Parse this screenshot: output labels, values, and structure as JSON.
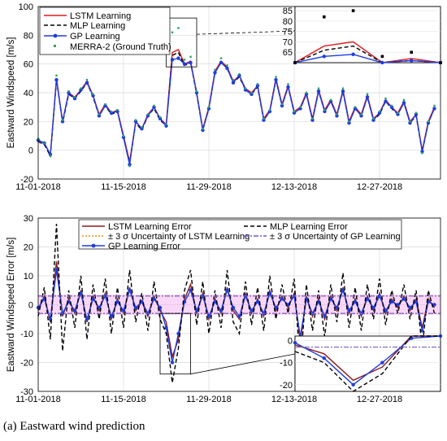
{
  "caption": {
    "tag": "(a)",
    "text": "Eastward wind prediction"
  },
  "colors": {
    "lstm": "#e31a1c",
    "mlp": "#000000",
    "gp": "#1f3de0",
    "merra": "#2ca25f",
    "lstm_err": "#8b1a1a",
    "sigma_lstm": "#ff8c00",
    "sigma_gp": "#6a5acd",
    "band": "#f3b6f3"
  },
  "chart_data": [
    {
      "type": "line",
      "ylabel": "Eastward Windspeed [m/s]",
      "ylim": [
        -20,
        100
      ],
      "yticks": [
        -20,
        0,
        20,
        40,
        60,
        80,
        100
      ],
      "xlim": [
        0,
        66
      ],
      "xticks": [
        {
          "pos": 0,
          "label": "11-01-2018"
        },
        {
          "pos": 14,
          "label": "11-15-2018"
        },
        {
          "pos": 28,
          "label": "11-29-2018"
        },
        {
          "pos": 42,
          "label": "12-13-2018"
        },
        {
          "pos": 56,
          "label": "12-27-2018"
        }
      ],
      "grid": true,
      "legend_position": "top-left",
      "series": [
        {
          "name": "LSTM Learning",
          "style": "line",
          "color": "lstm",
          "x": [
            0,
            1,
            2,
            3,
            4,
            5,
            6,
            7,
            8,
            9,
            10,
            11,
            12,
            13,
            14,
            15,
            16,
            17,
            18,
            19,
            20,
            21,
            22,
            23,
            24,
            25,
            26,
            27,
            28,
            29,
            30,
            31,
            32,
            33,
            34,
            35,
            36,
            37,
            38,
            39,
            40,
            41,
            42,
            43,
            44,
            45,
            46,
            47,
            48,
            49,
            50,
            51,
            52,
            53,
            54,
            55,
            56,
            57,
            58,
            59,
            60,
            61,
            62,
            63,
            64,
            65
          ],
          "y": [
            7,
            5,
            -3,
            50,
            20,
            40,
            37,
            42,
            48,
            38,
            25,
            32,
            26,
            28,
            10,
            -8,
            20,
            15,
            25,
            30,
            22,
            18,
            68,
            70,
            60,
            62,
            40,
            15,
            30,
            55,
            62,
            58,
            48,
            52,
            43,
            40,
            45,
            22,
            28,
            50,
            32,
            45,
            27,
            30,
            40,
            22,
            42,
            28,
            35,
            25,
            42,
            20,
            30,
            25,
            38,
            22,
            26,
            35,
            30,
            26,
            34,
            20,
            25,
            0,
            20,
            30
          ]
        },
        {
          "name": "MLP Learning",
          "style": "dash",
          "color": "mlp",
          "x": [
            0,
            1,
            2,
            3,
            4,
            5,
            6,
            7,
            8,
            9,
            10,
            11,
            12,
            13,
            14,
            15,
            16,
            17,
            18,
            19,
            20,
            21,
            22,
            23,
            24,
            25,
            26,
            27,
            28,
            29,
            30,
            31,
            32,
            33,
            34,
            35,
            36,
            37,
            38,
            39,
            40,
            41,
            42,
            43,
            44,
            45,
            46,
            47,
            48,
            49,
            50,
            51,
            52,
            53,
            54,
            55,
            56,
            57,
            58,
            59,
            60,
            61,
            62,
            63,
            64,
            65
          ],
          "y": [
            6,
            4,
            -4,
            49,
            19,
            39,
            36,
            41,
            47,
            37,
            24,
            31,
            25,
            27,
            9,
            -9,
            19,
            14,
            24,
            29,
            21,
            17,
            66,
            68,
            59,
            61,
            39,
            14,
            29,
            54,
            61,
            57,
            47,
            51,
            42,
            39,
            44,
            21,
            27,
            49,
            31,
            44,
            26,
            29,
            39,
            21,
            41,
            27,
            34,
            24,
            41,
            19,
            29,
            24,
            37,
            21,
            25,
            34,
            29,
            25,
            33,
            19,
            24,
            -1,
            19,
            29
          ]
        },
        {
          "name": "GP Learning",
          "style": "line-marker",
          "color": "gp",
          "x": [
            0,
            1,
            2,
            3,
            4,
            5,
            6,
            7,
            8,
            9,
            10,
            11,
            12,
            13,
            14,
            15,
            16,
            17,
            18,
            19,
            20,
            21,
            22,
            23,
            24,
            25,
            26,
            27,
            28,
            29,
            30,
            31,
            32,
            33,
            34,
            35,
            36,
            37,
            38,
            39,
            40,
            41,
            42,
            43,
            44,
            45,
            46,
            47,
            48,
            49,
            50,
            51,
            52,
            53,
            54,
            55,
            56,
            57,
            58,
            59,
            60,
            61,
            62,
            63,
            64,
            65
          ],
          "y": [
            7,
            5,
            -3,
            49,
            20,
            40,
            36,
            42,
            47,
            38,
            24,
            31,
            26,
            27,
            9,
            -10,
            20,
            15,
            24,
            30,
            22,
            17,
            63,
            64,
            60,
            61,
            40,
            14,
            29,
            54,
            61,
            57,
            47,
            52,
            42,
            39,
            45,
            21,
            27,
            49,
            31,
            44,
            26,
            29,
            39,
            21,
            41,
            27,
            34,
            24,
            41,
            19,
            29,
            24,
            37,
            21,
            26,
            34,
            30,
            25,
            33,
            19,
            25,
            -1,
            19,
            29
          ]
        },
        {
          "name": "MERRA-2 (Ground Truth)",
          "style": "marker",
          "color": "merra",
          "x": [
            0,
            1,
            2,
            3,
            4,
            5,
            6,
            7,
            8,
            9,
            10,
            11,
            12,
            13,
            14,
            15,
            16,
            17,
            18,
            19,
            20,
            21,
            22,
            23,
            24,
            25,
            26,
            27,
            28,
            29,
            30,
            31,
            32,
            33,
            34,
            35,
            36,
            37,
            38,
            39,
            40,
            41,
            42,
            43,
            44,
            45,
            46,
            47,
            48,
            49,
            50,
            51,
            52,
            53,
            54,
            55,
            56,
            57,
            58,
            59,
            60,
            61,
            62,
            63,
            64,
            65
          ],
          "y": [
            8,
            5,
            -4,
            52,
            21,
            41,
            37,
            43,
            49,
            39,
            25,
            32,
            27,
            28,
            10,
            -11,
            21,
            16,
            25,
            31,
            23,
            18,
            82,
            85,
            63,
            65,
            41,
            15,
            30,
            56,
            64,
            59,
            49,
            53,
            43,
            40,
            46,
            22,
            28,
            51,
            32,
            46,
            27,
            30,
            40,
            22,
            43,
            28,
            35,
            25,
            43,
            20,
            30,
            25,
            39,
            22,
            27,
            36,
            31,
            26,
            35,
            20,
            26,
            -2,
            20,
            31
          ]
        }
      ],
      "inset": {
        "ylim": [
          60,
          87
        ],
        "yticks": [
          65,
          70,
          75,
          80,
          85
        ],
        "x_range": [
          21,
          26
        ],
        "box_y": [
          58,
          92
        ]
      }
    },
    {
      "type": "line",
      "ylabel": "Eastward Windspeed Error [m/s]",
      "ylim": [
        -30,
        30
      ],
      "yticks": [
        -30,
        -20,
        -10,
        0,
        10,
        20,
        30
      ],
      "xlim": [
        0,
        66
      ],
      "xticks": [
        {
          "pos": 0,
          "label": "11-01-2018"
        },
        {
          "pos": 14,
          "label": "11-15-2018"
        },
        {
          "pos": 28,
          "label": "11-29-2018"
        },
        {
          "pos": 42,
          "label": "12-13-2018"
        },
        {
          "pos": 56,
          "label": "12-27-2018"
        }
      ],
      "grid": true,
      "legend_position": "top",
      "band": [
        -3.5,
        3.5
      ],
      "series": [
        {
          "name": "LSTM Learning Error",
          "style": "line",
          "color": "lstm_err",
          "x": [
            0,
            1,
            2,
            3,
            4,
            5,
            6,
            7,
            8,
            9,
            10,
            11,
            12,
            13,
            14,
            15,
            16,
            17,
            18,
            19,
            20,
            21,
            22,
            23,
            24,
            25,
            26,
            27,
            28,
            29,
            30,
            31,
            32,
            33,
            34,
            35,
            36,
            37,
            38,
            39,
            40,
            41,
            42,
            43,
            44,
            45,
            46,
            47,
            48,
            49,
            50,
            51,
            52,
            53,
            54,
            55,
            56,
            57,
            58,
            59,
            60,
            61,
            62,
            63,
            64,
            65
          ],
          "y": [
            -2,
            3,
            -6,
            15,
            -4,
            2,
            -3,
            5,
            -6,
            3,
            -2,
            4,
            -5,
            2,
            -3,
            6,
            -2,
            1,
            -4,
            3,
            -2,
            -6,
            -18,
            -12,
            2,
            7,
            -3,
            4,
            -5,
            2,
            -3,
            6,
            -2,
            -5,
            4,
            -3,
            2,
            -4,
            5,
            -2,
            3,
            -1,
            4,
            -13,
            3,
            -4,
            2,
            -5,
            3,
            -2,
            6,
            -3,
            2,
            -4,
            3,
            -2,
            4,
            -3,
            2,
            -1,
            3,
            -2,
            2,
            -8,
            2,
            -1
          ]
        },
        {
          "name": "GP Learning Error",
          "style": "line-marker",
          "color": "gp",
          "x": [
            0,
            1,
            2,
            3,
            4,
            5,
            6,
            7,
            8,
            9,
            10,
            11,
            12,
            13,
            14,
            15,
            16,
            17,
            18,
            19,
            20,
            21,
            22,
            23,
            24,
            25,
            26,
            27,
            28,
            29,
            30,
            31,
            32,
            33,
            34,
            35,
            36,
            37,
            38,
            39,
            40,
            41,
            42,
            43,
            44,
            45,
            46,
            47,
            48,
            49,
            50,
            51,
            52,
            53,
            54,
            55,
            56,
            57,
            58,
            59,
            60,
            61,
            62,
            63,
            64,
            65
          ],
          "y": [
            -1,
            2,
            -5,
            12,
            -3,
            1,
            -2,
            4,
            -5,
            2,
            -1,
            3,
            -4,
            1,
            -2,
            5,
            -1,
            1,
            -3,
            2,
            -1,
            -8,
            -20,
            -10,
            1,
            5,
            -2,
            3,
            -4,
            1,
            -2,
            5,
            -1,
            -4,
            3,
            -2,
            1,
            -3,
            4,
            -1,
            2,
            0,
            3,
            -11,
            2,
            -3,
            1,
            -4,
            2,
            -1,
            5,
            -2,
            1,
            -3,
            2,
            -1,
            3,
            -2,
            1,
            0,
            2,
            -1,
            1,
            -9,
            1,
            0
          ]
        },
        {
          "name": "MLP Learning Error",
          "style": "dash",
          "color": "mlp",
          "x": [
            0,
            1,
            2,
            3,
            4,
            5,
            6,
            7,
            8,
            9,
            10,
            11,
            12,
            13,
            14,
            15,
            16,
            17,
            18,
            19,
            20,
            21,
            22,
            23,
            24,
            25,
            26,
            27,
            28,
            29,
            30,
            31,
            32,
            33,
            34,
            35,
            36,
            37,
            38,
            39,
            40,
            41,
            42,
            43,
            44,
            45,
            46,
            47,
            48,
            49,
            50,
            51,
            52,
            53,
            54,
            55,
            56,
            57,
            58,
            59,
            60,
            61,
            62,
            63,
            64,
            65
          ],
          "y": [
            -4,
            6,
            -12,
            28,
            -16,
            5,
            -8,
            10,
            -12,
            7,
            -5,
            9,
            -10,
            6,
            -8,
            12,
            -6,
            4,
            -9,
            8,
            -5,
            -10,
            -27,
            -15,
            5,
            12,
            -7,
            8,
            -10,
            5,
            -8,
            12,
            -6,
            -10,
            8,
            -7,
            6,
            -9,
            10,
            -5,
            7,
            -3,
            9,
            -22,
            7,
            -9,
            5,
            -11,
            7,
            -6,
            11,
            -8,
            6,
            -9,
            7,
            -5,
            9,
            -7,
            5,
            -3,
            7,
            -5,
            5,
            -15,
            5,
            -3
          ]
        },
        {
          "name": "± 3 σ Uncertainty of LSTM Learning",
          "style": "dot",
          "color": "sigma_lstm",
          "value": 3
        },
        {
          "name": "± 3 σ Uncertainty of GP Learning",
          "style": "dashdot",
          "color": "sigma_gp",
          "value": 3
        }
      ],
      "inset": {
        "ylim": [
          -23,
          2
        ],
        "yticks": [
          -20,
          -10,
          0
        ],
        "x_range": [
          20,
          25
        ],
        "box_y": [
          -24,
          -3
        ]
      }
    }
  ]
}
